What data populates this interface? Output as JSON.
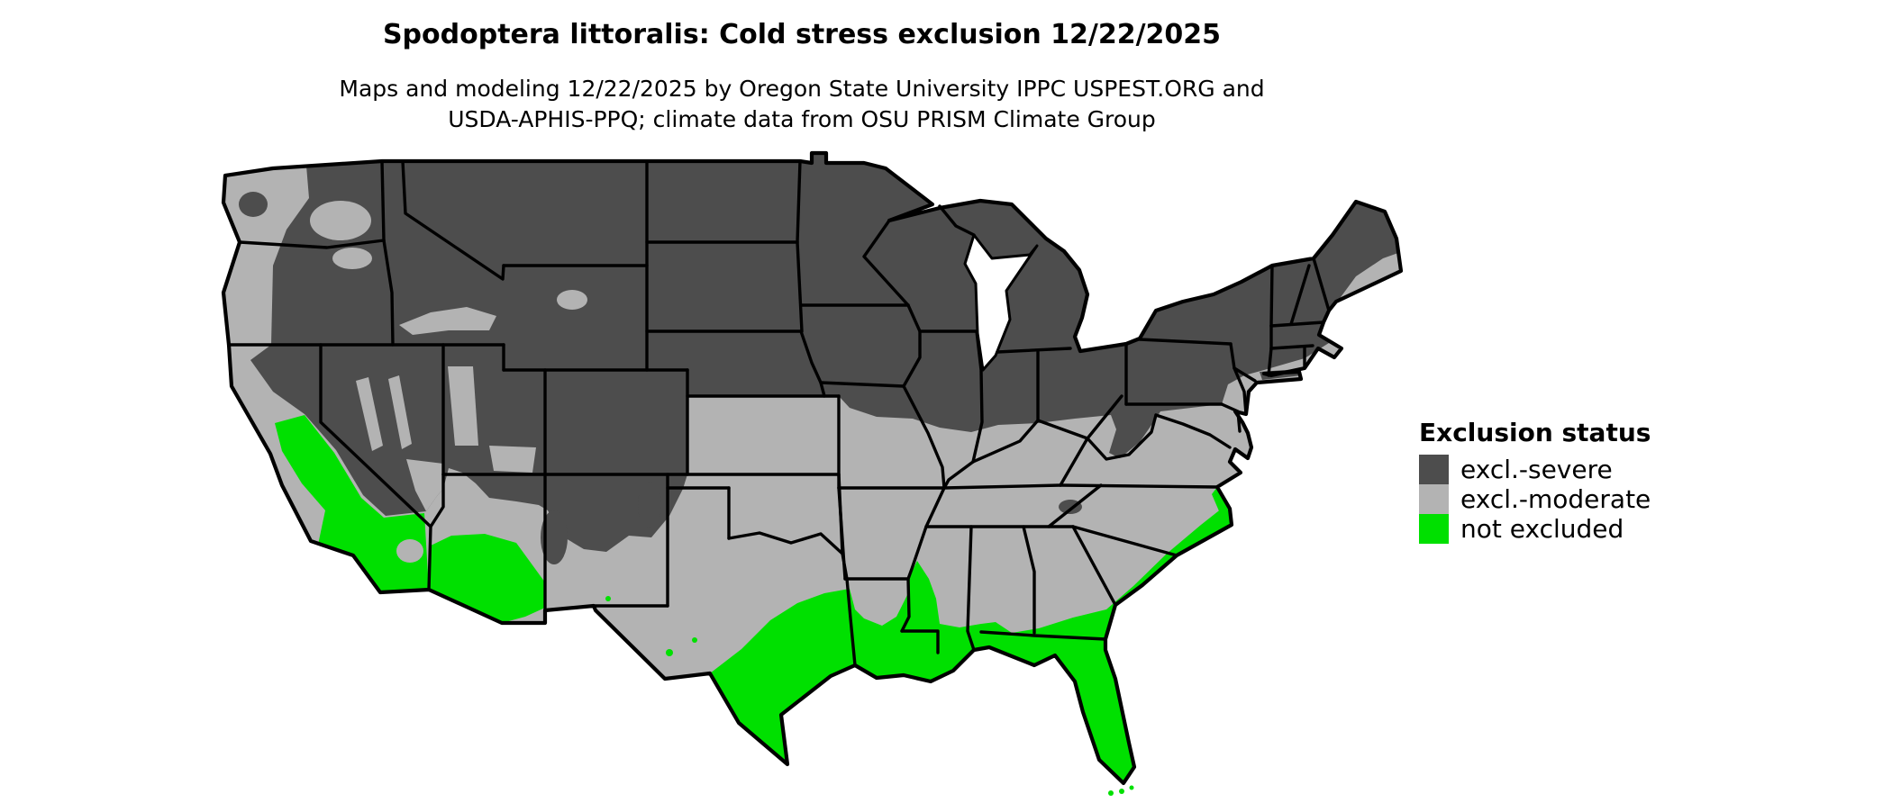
{
  "header": {
    "title": "Spodoptera littoralis: Cold stress exclusion 12/22/2025",
    "subtitle_line1": "Maps and modeling 12/22/2025 by Oregon State University IPPC USPEST.ORG and",
    "subtitle_line2": "USDA-APHIS-PPQ; climate data from OSU PRISM Climate Group"
  },
  "legend": {
    "title": "Exclusion status",
    "items": [
      {
        "label": "excl.-severe",
        "color": "#4d4d4d"
      },
      {
        "label": "excl.-moderate",
        "color": "#b3b3b3"
      },
      {
        "label": "not excluded",
        "color": "#00e000"
      }
    ]
  }
}
